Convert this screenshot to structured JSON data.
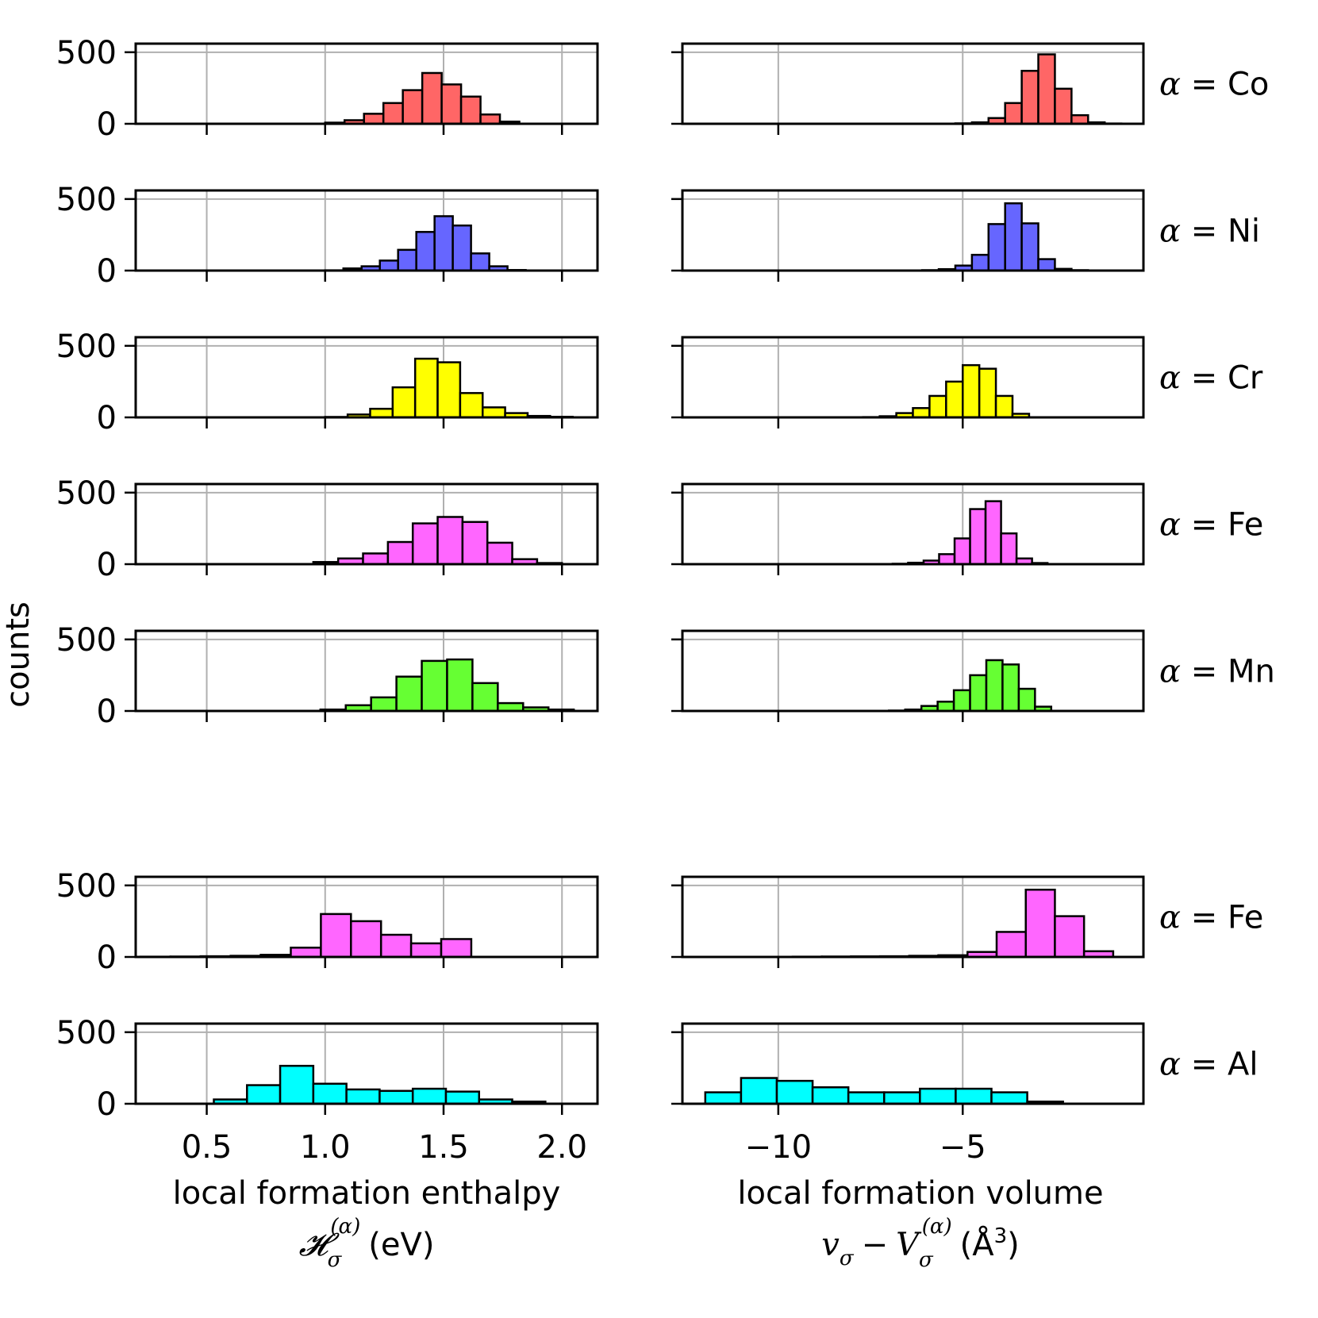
{
  "figure": {
    "ylabel": "counts",
    "left_xlabel_line1": "local formation enthalpy",
    "left_xlabel_line2_sym": "𝓗",
    "left_xlabel_line2_sub": "σ",
    "left_xlabel_line2_sup": "(α)",
    "left_xlabel_line2_unit": "(eV)",
    "right_xlabel_line1": "local formation volume",
    "right_xlabel_line2_a": "v",
    "right_xlabel_line2_a_sub": "σ",
    "right_xlabel_line2_minus": "−",
    "right_xlabel_line2_b": "V",
    "right_xlabel_line2_b_sub": "σ",
    "right_xlabel_line2_b_sup": "(α)",
    "right_xlabel_line2_unit": "(Å",
    "right_xlabel_line2_unit_sup": "3",
    "right_xlabel_line2_unit_close": ")"
  },
  "colors": {
    "Co": "#ff6666",
    "Ni": "#6666ff",
    "Cr": "#ffff00",
    "Fe": "#ff66ff",
    "Mn": "#66ff33",
    "Al": "#00ffff",
    "edge": "#000000",
    "grid": "#b0b0b0"
  },
  "chart_data": {
    "type": "bar",
    "subtype": "histogram-grid",
    "shared_axes": {
      "left": {
        "xlim": [
          0.2,
          2.15
        ],
        "xticks": [
          0.5,
          1.0,
          1.5,
          2.0
        ],
        "xtick_labels": [
          "0.5",
          "1.0",
          "1.5",
          "2.0"
        ]
      },
      "right": {
        "xlim": [
          -12.6,
          -0.1
        ],
        "xticks": [
          -10,
          -5
        ],
        "xtick_labels": [
          "−10",
          "−5"
        ]
      },
      "ylim": [
        0,
        560
      ],
      "yticks": [
        0,
        500
      ],
      "ytick_labels": [
        "0",
        "500"
      ],
      "grid": true
    },
    "rows": [
      {
        "label": "α = Co",
        "color_key": "Co",
        "left": {
          "bin_start": 1.0,
          "bin_width": 0.082,
          "counts": [
            8,
            25,
            70,
            145,
            235,
            355,
            275,
            190,
            65,
            15
          ]
        },
        "right": {
          "bin_start": -5.2,
          "bin_width": 0.45,
          "counts": [
            3,
            10,
            40,
            145,
            370,
            485,
            245,
            60,
            10,
            2
          ]
        }
      },
      {
        "label": "α = Ni",
        "color_key": "Ni",
        "left": {
          "bin_start": 1.0,
          "bin_width": 0.077,
          "counts": [
            2,
            15,
            30,
            70,
            145,
            270,
            380,
            315,
            120,
            30,
            4
          ]
        },
        "right": {
          "bin_start": -6.1,
          "bin_width": 0.45,
          "counts": [
            3,
            10,
            35,
            110,
            325,
            470,
            330,
            80,
            12,
            3
          ]
        }
      },
      {
        "label": "α = Cr",
        "color_key": "Cr",
        "left": {
          "bin_start": 1.0,
          "bin_width": 0.095,
          "counts": [
            3,
            20,
            60,
            210,
            410,
            385,
            170,
            70,
            30,
            10,
            4
          ]
        },
        "right": {
          "bin_start": -7.7,
          "bin_width": 0.45,
          "counts": [
            2,
            8,
            30,
            65,
            150,
            250,
            365,
            340,
            150,
            25
          ]
        }
      },
      {
        "label": "α = Fe",
        "color_key": "Fe",
        "left": {
          "bin_start": 0.95,
          "bin_width": 0.105,
          "counts": [
            15,
            40,
            75,
            155,
            285,
            330,
            295,
            150,
            35,
            8
          ]
        },
        "right": {
          "bin_start": -6.9,
          "bin_width": 0.42,
          "counts": [
            3,
            10,
            25,
            70,
            180,
            385,
            440,
            215,
            40,
            8
          ]
        }
      },
      {
        "label": "α = Mn",
        "color_key": "Mn",
        "left": {
          "bin_start": 0.98,
          "bin_width": 0.107,
          "counts": [
            10,
            40,
            95,
            240,
            350,
            360,
            195,
            55,
            25,
            10
          ]
        },
        "right": {
          "bin_start": -7.0,
          "bin_width": 0.44,
          "counts": [
            3,
            10,
            35,
            65,
            145,
            250,
            355,
            325,
            155,
            30
          ]
        }
      },
      {
        "label": "α = Fe",
        "color_key": "Fe",
        "group": "lower",
        "left": {
          "bin_start": 0.22,
          "bin_width": 0.127,
          "counts": [
            2,
            3,
            5,
            8,
            15,
            65,
            300,
            250,
            155,
            95,
            125
          ]
        },
        "right": {
          "bin_start": -10.4,
          "bin_width": 0.79,
          "counts": [
            1,
            2,
            3,
            4,
            5,
            8,
            12,
            35,
            175,
            470,
            285,
            40
          ]
        }
      },
      {
        "label": "α = Al",
        "color_key": "Al",
        "group": "lower",
        "left": {
          "bin_start": 0.53,
          "bin_width": 0.14,
          "counts": [
            30,
            130,
            265,
            140,
            100,
            90,
            105,
            85,
            30,
            15
          ]
        },
        "right": {
          "bin_start": -11.98,
          "bin_width": 0.97,
          "counts": [
            80,
            180,
            160,
            115,
            80,
            80,
            105,
            105,
            80,
            15
          ]
        }
      }
    ]
  }
}
